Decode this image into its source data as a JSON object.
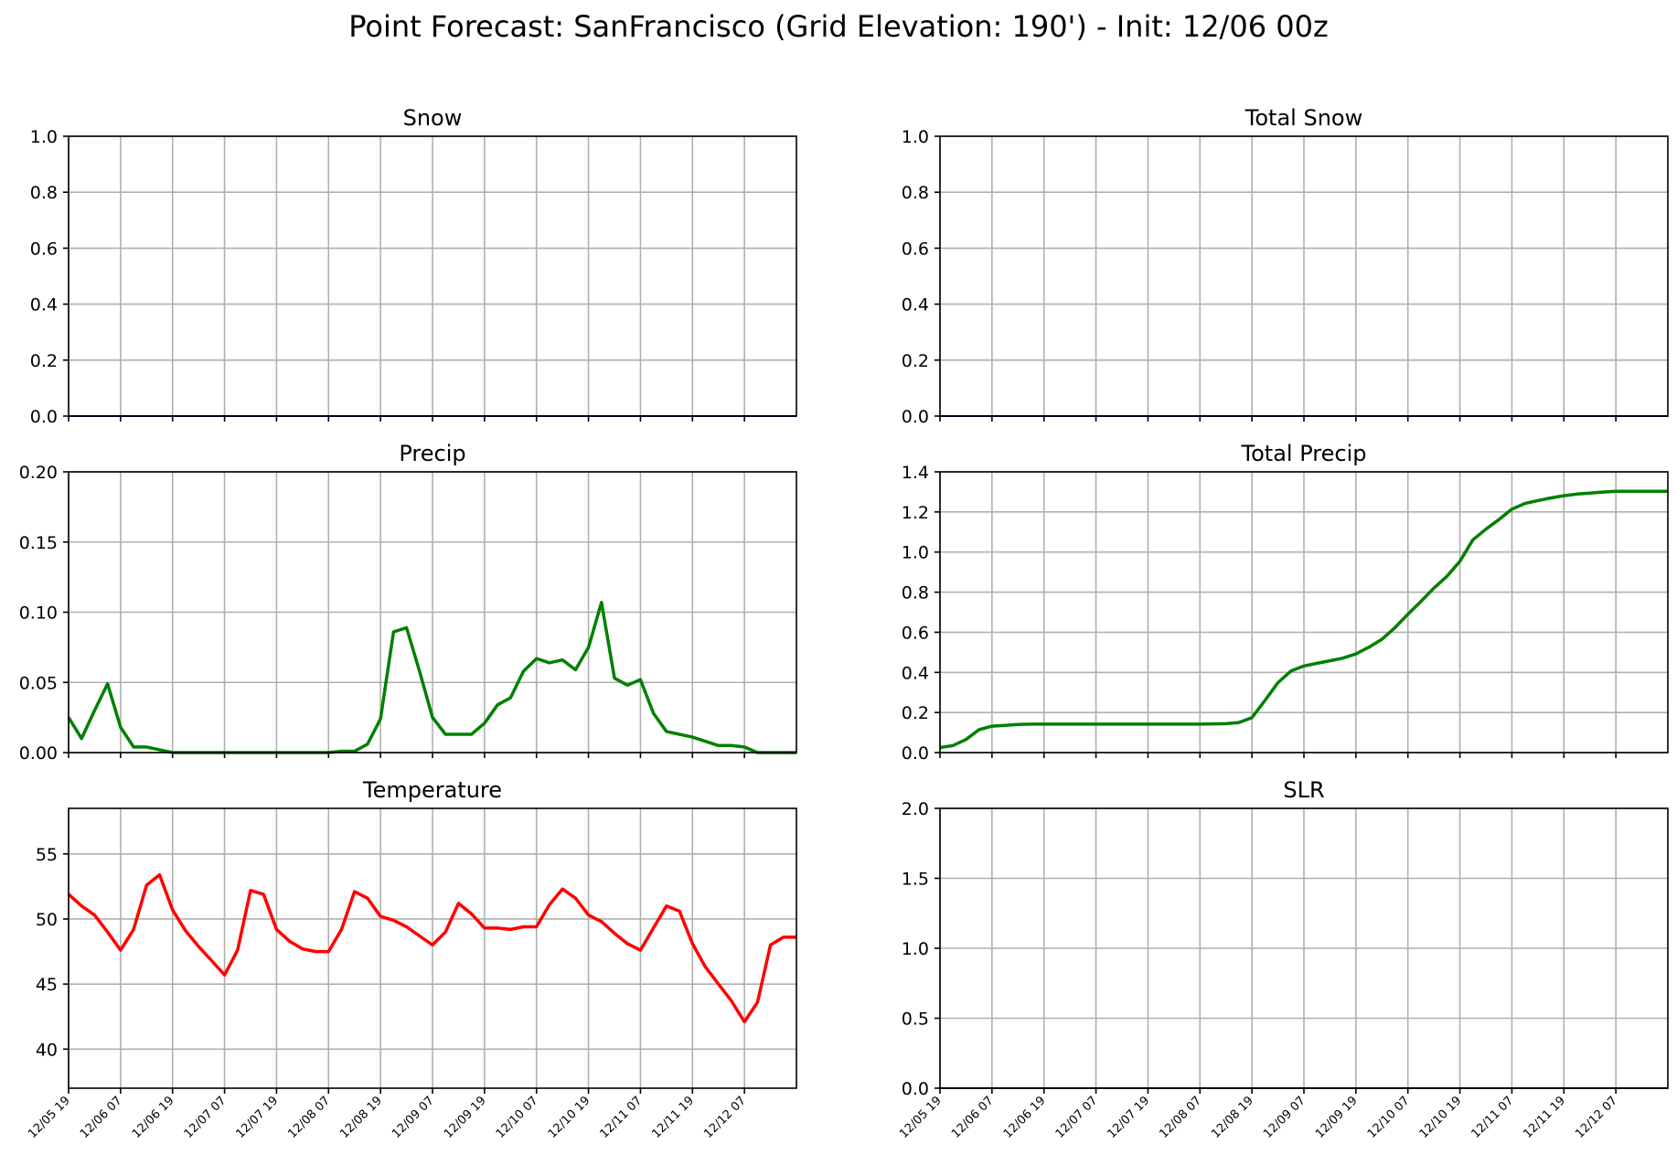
{
  "suptitle": "Point Forecast: SanFrancisco (Grid Elevation: 190') - Init: 12/06 00z",
  "x_tick_labels": [
    "12/05 19",
    "12/06 07",
    "12/06 19",
    "12/07 07",
    "12/07 19",
    "12/08 07",
    "12/08 19",
    "12/09 07",
    "12/09 19",
    "12/10 07",
    "12/10 19",
    "12/11 07",
    "12/11 19",
    "12/12 07"
  ],
  "chart_data": [
    {
      "title": "Snow",
      "type": "line",
      "ylim": [
        0,
        1.0
      ],
      "grid": true,
      "yticks": [
        "0.0",
        "0.2",
        "0.4",
        "0.6",
        "0.8",
        "1.0"
      ],
      "series": [
        {
          "color": "#000080",
          "values": [
            0,
            0,
            0,
            0,
            0,
            0,
            0,
            0,
            0,
            0,
            0,
            0,
            0,
            0,
            0,
            0,
            0,
            0,
            0,
            0,
            0,
            0,
            0,
            0,
            0,
            0,
            0,
            0,
            0,
            0,
            0,
            0,
            0,
            0,
            0,
            0,
            0,
            0,
            0,
            0,
            0,
            0,
            0,
            0,
            0,
            0,
            0,
            0,
            0,
            0,
            0,
            0,
            0,
            0,
            0,
            0,
            0
          ]
        }
      ]
    },
    {
      "title": "Total Snow",
      "type": "line",
      "ylim": [
        0,
        1.0
      ],
      "grid": true,
      "yticks": [
        "0.0",
        "0.2",
        "0.4",
        "0.6",
        "0.8",
        "1.0"
      ],
      "series": [
        {
          "color": "#000080",
          "values": [
            0,
            0,
            0,
            0,
            0,
            0,
            0,
            0,
            0,
            0,
            0,
            0,
            0,
            0,
            0,
            0,
            0,
            0,
            0,
            0,
            0,
            0,
            0,
            0,
            0,
            0,
            0,
            0,
            0,
            0,
            0,
            0,
            0,
            0,
            0,
            0,
            0,
            0,
            0,
            0,
            0,
            0,
            0,
            0,
            0,
            0,
            0,
            0,
            0,
            0,
            0,
            0,
            0,
            0,
            0,
            0,
            0
          ]
        }
      ]
    },
    {
      "title": "Precip",
      "type": "line",
      "ylim": [
        0,
        0.2
      ],
      "grid": true,
      "yticks": [
        "0.00",
        "0.05",
        "0.10",
        "0.15",
        "0.20"
      ],
      "series": [
        {
          "color": "#008000",
          "values": [
            0.025,
            0.01,
            0.03,
            0.049,
            0.018,
            0.004,
            0.004,
            0.002,
            0,
            0,
            0,
            0,
            0,
            0,
            0,
            0,
            0,
            0,
            0,
            0,
            0,
            0.001,
            0.001,
            0.006,
            0.024,
            0.086,
            0.089,
            0.058,
            0.025,
            0.013,
            0.013,
            0.013,
            0.021,
            0.034,
            0.039,
            0.058,
            0.067,
            0.064,
            0.066,
            0.059,
            0.075,
            0.107,
            0.053,
            0.048,
            0.052,
            0.028,
            0.015,
            0.013,
            0.011,
            0.008,
            0.005,
            0.005,
            0.004,
            0,
            0,
            0,
            0
          ]
        }
      ]
    },
    {
      "title": "Total Precip",
      "type": "line",
      "ylim": [
        0,
        1.4
      ],
      "grid": true,
      "yticks": [
        "0.0",
        "0.2",
        "0.4",
        "0.6",
        "0.8",
        "1.0",
        "1.2",
        "1.4"
      ],
      "series": [
        {
          "color": "#008000",
          "values": [
            0.025,
            0.035,
            0.065,
            0.114,
            0.132,
            0.136,
            0.14,
            0.142,
            0.142,
            0.142,
            0.142,
            0.142,
            0.142,
            0.142,
            0.142,
            0.142,
            0.142,
            0.142,
            0.142,
            0.142,
            0.142,
            0.143,
            0.144,
            0.15,
            0.174,
            0.26,
            0.349,
            0.407,
            0.432,
            0.445,
            0.458,
            0.471,
            0.492,
            0.526,
            0.565,
            0.623,
            0.69,
            0.754,
            0.82,
            0.879,
            0.954,
            1.061,
            1.114,
            1.162,
            1.214,
            1.242,
            1.257,
            1.27,
            1.281,
            1.289,
            1.294,
            1.299,
            1.303,
            1.303,
            1.303,
            1.303,
            1.303
          ]
        }
      ]
    },
    {
      "title": "Temperature",
      "type": "line",
      "ylim": [
        37,
        58.5
      ],
      "grid": true,
      "yticks": [
        "40",
        "45",
        "50",
        "55"
      ],
      "series": [
        {
          "color": "#ff0000",
          "values": [
            51.9,
            51.0,
            50.3,
            49.0,
            47.6,
            49.2,
            52.6,
            53.4,
            50.7,
            49.1,
            47.9,
            46.8,
            45.7,
            47.6,
            52.2,
            51.9,
            49.2,
            48.3,
            47.7,
            47.5,
            47.5,
            49.2,
            52.1,
            51.6,
            50.2,
            49.9,
            49.4,
            48.7,
            48.0,
            49.0,
            51.2,
            50.4,
            49.3,
            49.3,
            49.2,
            49.4,
            49.4,
            51.1,
            52.3,
            51.6,
            50.3,
            49.8,
            48.9,
            48.1,
            47.6,
            49.3,
            51.0,
            50.6,
            48.1,
            46.3,
            45.0,
            43.7,
            42.1,
            43.6,
            48.0,
            48.6,
            48.6
          ]
        }
      ]
    },
    {
      "title": "SLR",
      "type": "line",
      "ylim": [
        0,
        2.0
      ],
      "grid": true,
      "yticks": [
        "0.0",
        "0.5",
        "1.0",
        "1.5",
        "2.0"
      ],
      "series": [
        {
          "color": "#000000",
          "values": [
            0,
            0,
            0,
            0,
            0,
            0,
            0,
            0,
            0,
            0,
            0,
            0,
            0,
            0,
            0,
            0,
            0,
            0,
            0,
            0,
            0,
            0,
            0,
            0,
            0,
            0,
            0,
            0,
            0,
            0,
            0,
            0,
            0,
            0,
            0,
            0,
            0,
            0,
            0,
            0,
            0,
            0,
            0,
            0,
            0,
            0,
            0,
            0,
            0,
            0,
            0,
            0,
            0,
            0,
            0,
            0,
            0
          ]
        }
      ]
    }
  ]
}
